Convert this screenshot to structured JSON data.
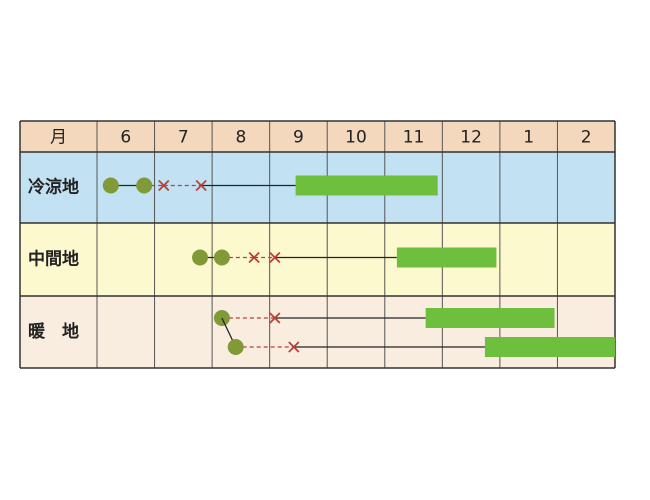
{
  "header": {
    "label": "月",
    "months": [
      "6",
      "7",
      "8",
      "9",
      "10",
      "11",
      "12",
      "1",
      "2"
    ]
  },
  "rows": [
    {
      "label": "冷涼地",
      "tracks": [
        {
          "sow": [
            0.24,
            0.82
          ],
          "plant": [
            1.16,
            1.81
          ],
          "harvest": [
            3.45,
            5.92
          ]
        }
      ]
    },
    {
      "label": "中間地",
      "tracks": [
        {
          "sow": [
            1.79,
            2.17
          ],
          "plant": [
            2.73,
            3.09
          ],
          "harvest": [
            5.21,
            6.94
          ]
        }
      ]
    },
    {
      "label": "暖　地",
      "tracks": [
        {
          "sow": [
            2.17
          ],
          "plant": [
            3.09
          ],
          "harvest": [
            5.71,
            7.95
          ]
        },
        {
          "sow": [
            2.41
          ],
          "plant": [
            3.42
          ],
          "harvest": [
            6.74,
            9.0
          ]
        }
      ]
    }
  ]
}
